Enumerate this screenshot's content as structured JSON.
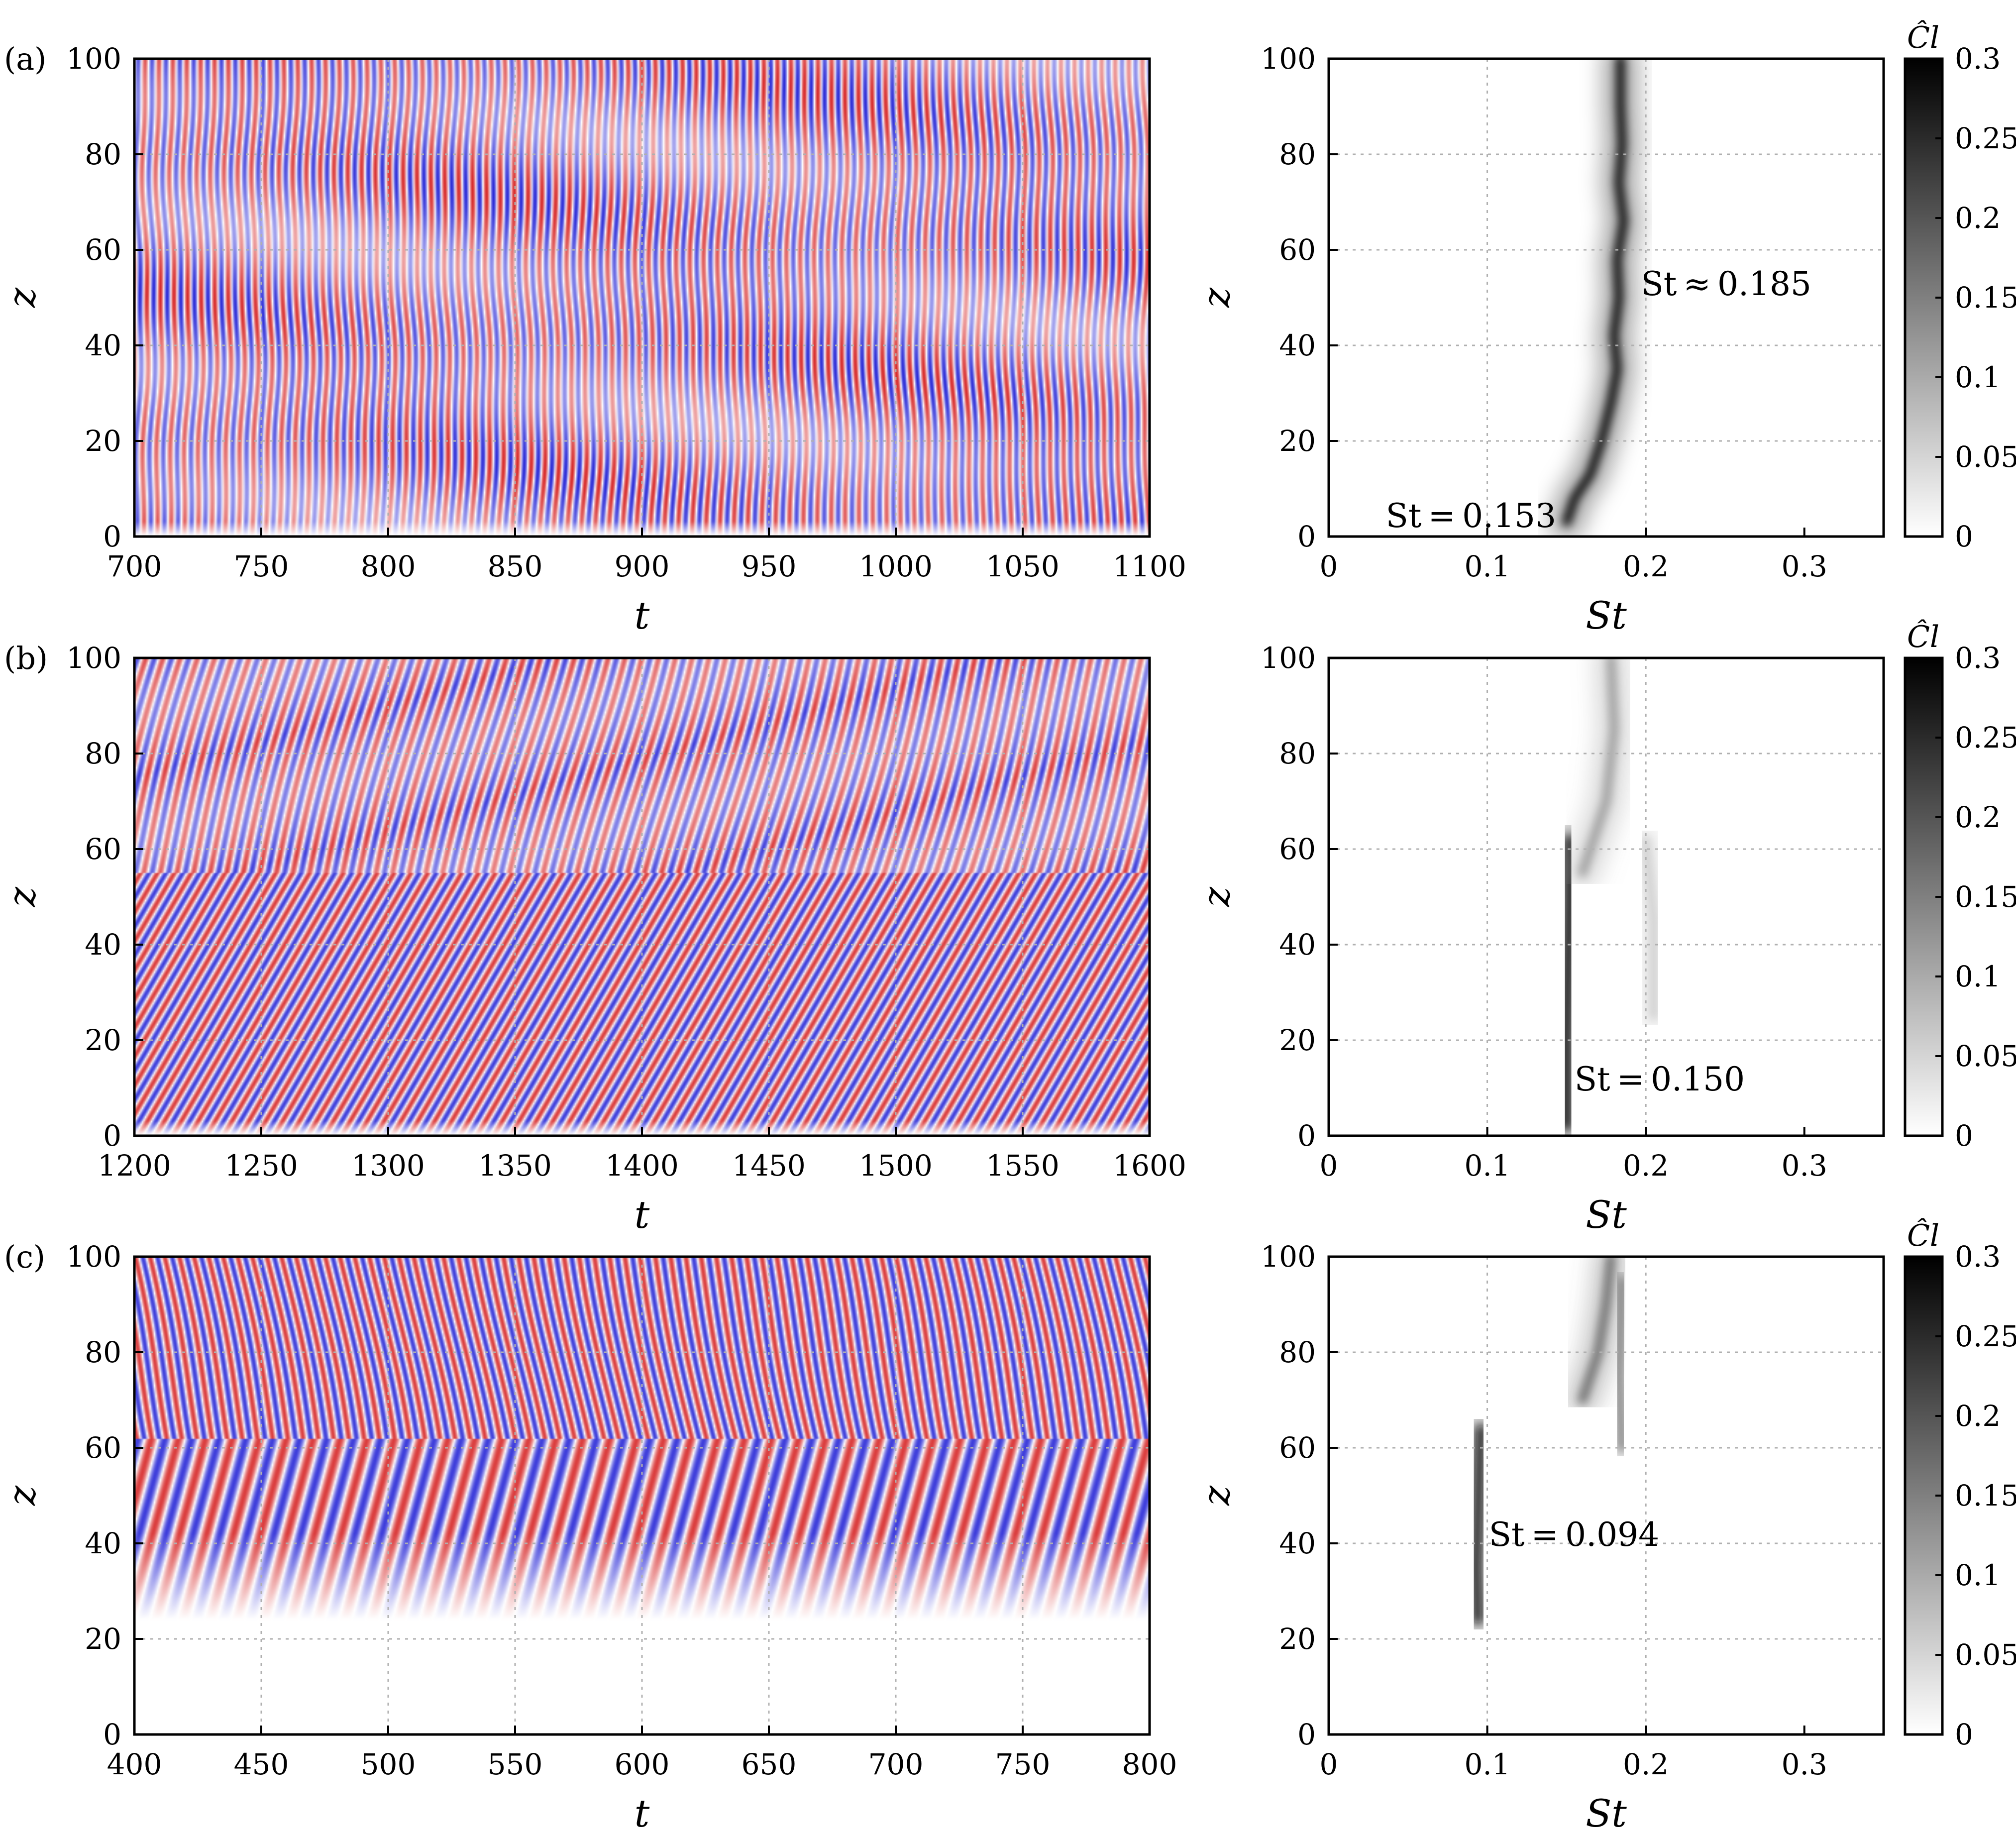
{
  "chart_data": [
    {
      "id": "a-left",
      "panel_label": "(a)",
      "type": "heatmap",
      "xlabel": "t",
      "ylabel": "z",
      "xlim": [
        700,
        1100
      ],
      "ylim": [
        0,
        100
      ],
      "xticks": [
        700,
        750,
        800,
        850,
        900,
        950,
        1000,
        1050,
        1100
      ],
      "yticks": [
        0,
        20,
        40,
        60,
        80,
        100
      ],
      "colormap": [
        "#3a3ad6",
        "#ffffff",
        "#d63a3a"
      ],
      "pattern": {
        "mode": "spanwise-uniform",
        "strouhal": 0.185,
        "onset_z": 0
      }
    },
    {
      "id": "a-right",
      "type": "heatmap",
      "xlabel": "St",
      "ylabel": "z",
      "xlim": [
        0,
        0.35
      ],
      "ylim": [
        0,
        100
      ],
      "xticks": [
        0,
        0.1,
        0.2,
        0.3
      ],
      "yticks": [
        0,
        20,
        40,
        60,
        80,
        100
      ],
      "ridges": [
        {
          "points": [
            [
              0.15,
              3
            ],
            [
              0.155,
              8
            ],
            [
              0.165,
              13
            ],
            [
              0.172,
              20
            ],
            [
              0.178,
              28
            ],
            [
              0.182,
              35
            ],
            [
              0.18,
              42
            ],
            [
              0.183,
              50
            ],
            [
              0.182,
              58
            ],
            [
              0.186,
              66
            ],
            [
              0.183,
              74
            ],
            [
              0.185,
              82
            ],
            [
              0.184,
              90
            ],
            [
              0.184,
              100
            ]
          ],
          "intensity": 0.3
        }
      ],
      "annotations": [
        {
          "text": "St ≈ 0.185",
          "x": 0.197,
          "y": 53
        },
        {
          "text": "St = 0.153",
          "x": 0.036,
          "y": 4.5
        }
      ]
    },
    {
      "id": "b-left",
      "panel_label": "(b)",
      "type": "heatmap",
      "xlabel": "t",
      "ylabel": "z",
      "xlim": [
        1200,
        1600
      ],
      "ylim": [
        0,
        100
      ],
      "xticks": [
        1200,
        1250,
        1300,
        1350,
        1400,
        1450,
        1500,
        1550,
        1600
      ],
      "yticks": [
        0,
        20,
        40,
        60,
        80,
        100
      ],
      "colormap": [
        "#3a3ad6",
        "#ffffff",
        "#d63a3a"
      ],
      "pattern": {
        "mode": "oblique",
        "strouhal": 0.15,
        "onset_z": 0
      }
    },
    {
      "id": "b-right",
      "type": "heatmap",
      "xlabel": "St",
      "ylabel": "z",
      "xlim": [
        0,
        0.35
      ],
      "ylim": [
        0,
        100
      ],
      "xticks": [
        0,
        0.1,
        0.2,
        0.3
      ],
      "yticks": [
        0,
        20,
        40,
        60,
        80,
        100
      ],
      "ridges": [
        {
          "points": [
            [
              0.15,
              2
            ],
            [
              0.15,
              20
            ],
            [
              0.151,
              35
            ],
            [
              0.152,
              50
            ],
            [
              0.152,
              62
            ]
          ],
          "intensity": 0.3
        },
        {
          "points": [
            [
              0.16,
              55
            ],
            [
              0.175,
              70
            ],
            [
              0.18,
              85
            ],
            [
              0.178,
              100
            ]
          ],
          "intensity": 0.12
        },
        {
          "points": [
            [
              0.205,
              25
            ],
            [
              0.205,
              45
            ],
            [
              0.2,
              62
            ]
          ],
          "intensity": 0.06
        }
      ],
      "annotations": [
        {
          "text": "St = 0.150",
          "x": 0.155,
          "y": 12
        }
      ]
    },
    {
      "id": "c-left",
      "panel_label": "(c)",
      "type": "heatmap",
      "xlabel": "t",
      "ylabel": "z",
      "xlim": [
        400,
        800
      ],
      "ylim": [
        0,
        100
      ],
      "xticks": [
        400,
        450,
        500,
        550,
        600,
        650,
        700,
        750,
        800
      ],
      "yticks": [
        0,
        20,
        40,
        60,
        80,
        100
      ],
      "colormap": [
        "#3a3ad6",
        "#ffffff",
        "#d63a3a"
      ],
      "pattern": {
        "mode": "oblique",
        "strouhal": 0.094,
        "onset_z": 24
      }
    },
    {
      "id": "c-right",
      "type": "heatmap",
      "xlabel": "St",
      "ylabel": "z",
      "xlim": [
        0,
        0.35
      ],
      "ylim": [
        0,
        100
      ],
      "xticks": [
        0,
        0.1,
        0.2,
        0.3
      ],
      "yticks": [
        0,
        20,
        40,
        60,
        80,
        100
      ],
      "ridges": [
        {
          "points": [
            [
              0.094,
              24
            ],
            [
              0.093,
              35
            ],
            [
              0.094,
              45
            ],
            [
              0.095,
              55
            ],
            [
              0.096,
              64
            ]
          ],
          "intensity": 0.28
        },
        {
          "points": [
            [
              0.16,
              70
            ],
            [
              0.17,
              80
            ],
            [
              0.175,
              90
            ],
            [
              0.178,
              100
            ]
          ],
          "intensity": 0.18
        },
        {
          "points": [
            [
              0.185,
              60
            ],
            [
              0.183,
              75
            ],
            [
              0.185,
              95
            ]
          ],
          "intensity": 0.15
        }
      ],
      "annotations": [
        {
          "text": "St = 0.094",
          "x": 0.101,
          "y": 42
        }
      ]
    },
    {
      "id": "colorbar",
      "type": "colorbar",
      "title": "Ĉl",
      "range": [
        0,
        0.3
      ],
      "ticks": [
        0,
        0.05,
        0.1,
        0.15,
        0.2,
        0.25,
        0.3
      ],
      "tick_labels": [
        "0",
        "0.05",
        "0.1",
        "0.15",
        "0.2",
        "0.25",
        "0.3"
      ],
      "colormap": [
        "#ffffff",
        "#000000"
      ]
    }
  ]
}
